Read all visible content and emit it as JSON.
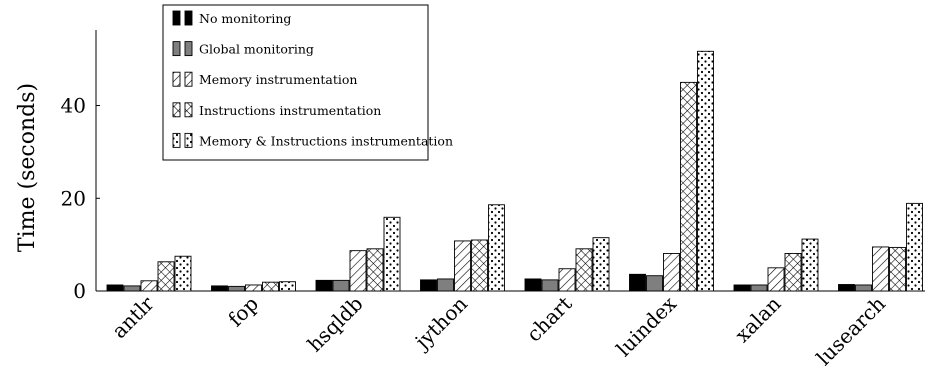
{
  "chart_data": {
    "type": "bar",
    "title": "",
    "xlabel": "",
    "ylabel": "Time (seconds)",
    "ylim": [
      0,
      55
    ],
    "yticks": [
      0,
      20,
      40
    ],
    "grid": false,
    "legend_position": "top-left",
    "categories": [
      "antlr",
      "fop",
      "hsqldb",
      "jython",
      "chart",
      "luindex",
      "xalan",
      "lusearch"
    ],
    "series": [
      {
        "name": "No monitoring",
        "pattern": "solid-black",
        "values": [
          1.3,
          1.1,
          2.3,
          2.4,
          2.6,
          3.6,
          1.3,
          1.4
        ]
      },
      {
        "name": "Global monitoring",
        "pattern": "solid-gray",
        "values": [
          1.1,
          1.0,
          2.3,
          2.6,
          2.4,
          3.3,
          1.3,
          1.3
        ]
      },
      {
        "name": "Memory instrumentation",
        "pattern": "diagonal-lines",
        "values": [
          2.2,
          1.3,
          8.7,
          10.8,
          4.8,
          8.1,
          5.0,
          9.5
        ]
      },
      {
        "name": "Instructions instrumentation",
        "pattern": "crosshatch",
        "values": [
          6.3,
          1.9,
          9.1,
          11.0,
          9.1,
          45.0,
          8.1,
          9.4
        ]
      },
      {
        "name": "Memory & Instructions instrumentation",
        "pattern": "dots",
        "values": [
          7.5,
          2.0,
          15.9,
          18.6,
          11.5,
          51.7,
          11.2,
          18.9
        ]
      }
    ],
    "colors": {
      "solid-black": "#000000",
      "solid-gray": "#7f7f7f",
      "outline": "#000000"
    }
  }
}
